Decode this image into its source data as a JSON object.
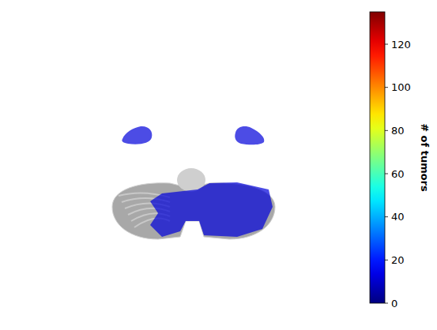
{
  "chart_data": {
    "type": "heatmap",
    "values": [
      12,
      12,
      12
    ],
    "colorbar": {
      "range": [
        0,
        135
      ],
      "ticks": [
        0,
        20,
        40,
        60,
        80,
        100,
        120
      ],
      "label": "# of tumors"
    }
  }
}
